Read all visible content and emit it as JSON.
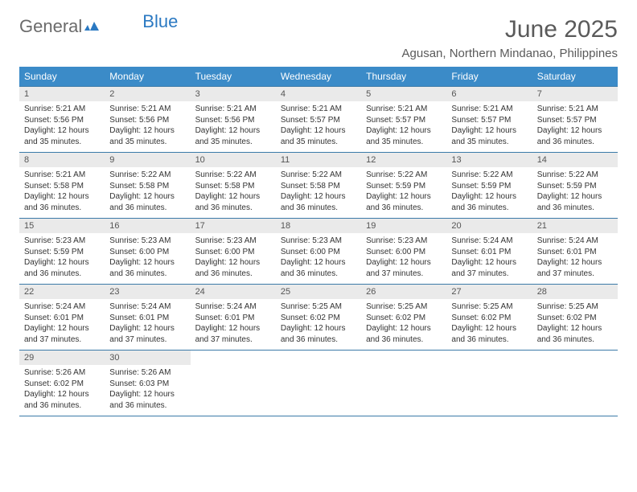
{
  "brand": {
    "part1": "General",
    "part2": "Blue"
  },
  "title": "June 2025",
  "subtitle": "Agusan, Northern Mindanao, Philippines",
  "colors": {
    "header_bg": "#3b8bc8",
    "header_text": "#ffffff",
    "daynum_bg": "#eaeaea",
    "row_border": "#3b7aa8",
    "title_color": "#5a5a5a",
    "brand_gray": "#6b6b6b",
    "brand_blue": "#2b79c2"
  },
  "weekdays": [
    "Sunday",
    "Monday",
    "Tuesday",
    "Wednesday",
    "Thursday",
    "Friday",
    "Saturday"
  ],
  "weeks": [
    [
      {
        "n": "1",
        "sr": "Sunrise: 5:21 AM",
        "ss": "Sunset: 5:56 PM",
        "d1": "Daylight: 12 hours",
        "d2": "and 35 minutes."
      },
      {
        "n": "2",
        "sr": "Sunrise: 5:21 AM",
        "ss": "Sunset: 5:56 PM",
        "d1": "Daylight: 12 hours",
        "d2": "and 35 minutes."
      },
      {
        "n": "3",
        "sr": "Sunrise: 5:21 AM",
        "ss": "Sunset: 5:56 PM",
        "d1": "Daylight: 12 hours",
        "d2": "and 35 minutes."
      },
      {
        "n": "4",
        "sr": "Sunrise: 5:21 AM",
        "ss": "Sunset: 5:57 PM",
        "d1": "Daylight: 12 hours",
        "d2": "and 35 minutes."
      },
      {
        "n": "5",
        "sr": "Sunrise: 5:21 AM",
        "ss": "Sunset: 5:57 PM",
        "d1": "Daylight: 12 hours",
        "d2": "and 35 minutes."
      },
      {
        "n": "6",
        "sr": "Sunrise: 5:21 AM",
        "ss": "Sunset: 5:57 PM",
        "d1": "Daylight: 12 hours",
        "d2": "and 35 minutes."
      },
      {
        "n": "7",
        "sr": "Sunrise: 5:21 AM",
        "ss": "Sunset: 5:57 PM",
        "d1": "Daylight: 12 hours",
        "d2": "and 36 minutes."
      }
    ],
    [
      {
        "n": "8",
        "sr": "Sunrise: 5:21 AM",
        "ss": "Sunset: 5:58 PM",
        "d1": "Daylight: 12 hours",
        "d2": "and 36 minutes."
      },
      {
        "n": "9",
        "sr": "Sunrise: 5:22 AM",
        "ss": "Sunset: 5:58 PM",
        "d1": "Daylight: 12 hours",
        "d2": "and 36 minutes."
      },
      {
        "n": "10",
        "sr": "Sunrise: 5:22 AM",
        "ss": "Sunset: 5:58 PM",
        "d1": "Daylight: 12 hours",
        "d2": "and 36 minutes."
      },
      {
        "n": "11",
        "sr": "Sunrise: 5:22 AM",
        "ss": "Sunset: 5:58 PM",
        "d1": "Daylight: 12 hours",
        "d2": "and 36 minutes."
      },
      {
        "n": "12",
        "sr": "Sunrise: 5:22 AM",
        "ss": "Sunset: 5:59 PM",
        "d1": "Daylight: 12 hours",
        "d2": "and 36 minutes."
      },
      {
        "n": "13",
        "sr": "Sunrise: 5:22 AM",
        "ss": "Sunset: 5:59 PM",
        "d1": "Daylight: 12 hours",
        "d2": "and 36 minutes."
      },
      {
        "n": "14",
        "sr": "Sunrise: 5:22 AM",
        "ss": "Sunset: 5:59 PM",
        "d1": "Daylight: 12 hours",
        "d2": "and 36 minutes."
      }
    ],
    [
      {
        "n": "15",
        "sr": "Sunrise: 5:23 AM",
        "ss": "Sunset: 5:59 PM",
        "d1": "Daylight: 12 hours",
        "d2": "and 36 minutes."
      },
      {
        "n": "16",
        "sr": "Sunrise: 5:23 AM",
        "ss": "Sunset: 6:00 PM",
        "d1": "Daylight: 12 hours",
        "d2": "and 36 minutes."
      },
      {
        "n": "17",
        "sr": "Sunrise: 5:23 AM",
        "ss": "Sunset: 6:00 PM",
        "d1": "Daylight: 12 hours",
        "d2": "and 36 minutes."
      },
      {
        "n": "18",
        "sr": "Sunrise: 5:23 AM",
        "ss": "Sunset: 6:00 PM",
        "d1": "Daylight: 12 hours",
        "d2": "and 36 minutes."
      },
      {
        "n": "19",
        "sr": "Sunrise: 5:23 AM",
        "ss": "Sunset: 6:00 PM",
        "d1": "Daylight: 12 hours",
        "d2": "and 37 minutes."
      },
      {
        "n": "20",
        "sr": "Sunrise: 5:24 AM",
        "ss": "Sunset: 6:01 PM",
        "d1": "Daylight: 12 hours",
        "d2": "and 37 minutes."
      },
      {
        "n": "21",
        "sr": "Sunrise: 5:24 AM",
        "ss": "Sunset: 6:01 PM",
        "d1": "Daylight: 12 hours",
        "d2": "and 37 minutes."
      }
    ],
    [
      {
        "n": "22",
        "sr": "Sunrise: 5:24 AM",
        "ss": "Sunset: 6:01 PM",
        "d1": "Daylight: 12 hours",
        "d2": "and 37 minutes."
      },
      {
        "n": "23",
        "sr": "Sunrise: 5:24 AM",
        "ss": "Sunset: 6:01 PM",
        "d1": "Daylight: 12 hours",
        "d2": "and 37 minutes."
      },
      {
        "n": "24",
        "sr": "Sunrise: 5:24 AM",
        "ss": "Sunset: 6:01 PM",
        "d1": "Daylight: 12 hours",
        "d2": "and 37 minutes."
      },
      {
        "n": "25",
        "sr": "Sunrise: 5:25 AM",
        "ss": "Sunset: 6:02 PM",
        "d1": "Daylight: 12 hours",
        "d2": "and 36 minutes."
      },
      {
        "n": "26",
        "sr": "Sunrise: 5:25 AM",
        "ss": "Sunset: 6:02 PM",
        "d1": "Daylight: 12 hours",
        "d2": "and 36 minutes."
      },
      {
        "n": "27",
        "sr": "Sunrise: 5:25 AM",
        "ss": "Sunset: 6:02 PM",
        "d1": "Daylight: 12 hours",
        "d2": "and 36 minutes."
      },
      {
        "n": "28",
        "sr": "Sunrise: 5:25 AM",
        "ss": "Sunset: 6:02 PM",
        "d1": "Daylight: 12 hours",
        "d2": "and 36 minutes."
      }
    ],
    [
      {
        "n": "29",
        "sr": "Sunrise: 5:26 AM",
        "ss": "Sunset: 6:02 PM",
        "d1": "Daylight: 12 hours",
        "d2": "and 36 minutes."
      },
      {
        "n": "30",
        "sr": "Sunrise: 5:26 AM",
        "ss": "Sunset: 6:03 PM",
        "d1": "Daylight: 12 hours",
        "d2": "and 36 minutes."
      },
      null,
      null,
      null,
      null,
      null
    ]
  ]
}
